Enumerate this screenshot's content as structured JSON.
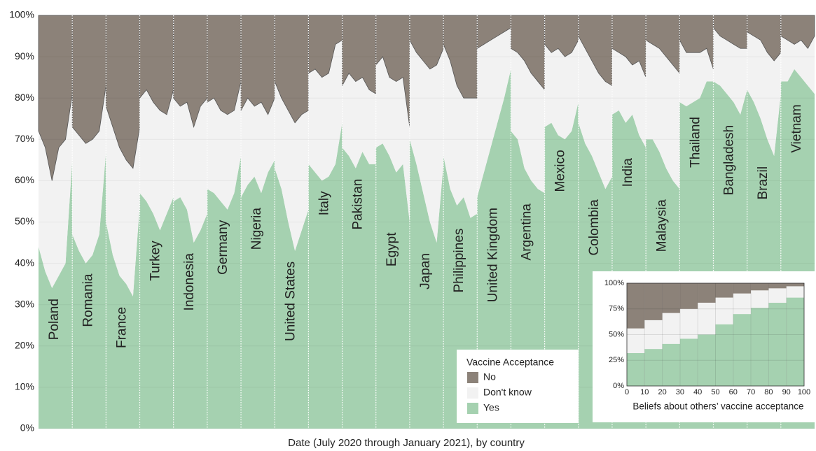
{
  "chart_data": [
    {
      "type": "stacked_area_panels",
      "xlabel": "Date (July 2020 through January 2021), by country",
      "legend_title": "Vaccine Acceptance",
      "ylim": [
        0,
        100
      ],
      "yticks": [
        {
          "value": 0,
          "label": "0%"
        },
        {
          "value": 10,
          "label": "10%"
        },
        {
          "value": 20,
          "label": "20%"
        },
        {
          "value": 30,
          "label": "30%"
        },
        {
          "value": 40,
          "label": "40%"
        },
        {
          "value": 50,
          "label": "50%"
        },
        {
          "value": 60,
          "label": "60%"
        },
        {
          "value": 70,
          "label": "70%"
        },
        {
          "value": 80,
          "label": "80%"
        },
        {
          "value": 90,
          "label": "90%"
        },
        {
          "value": 100,
          "label": "100%"
        }
      ],
      "grid": true,
      "categories": [
        "Poland",
        "Romania",
        "France",
        "Turkey",
        "Indonesia",
        "Germany",
        "Nigeria",
        "United States",
        "Italy",
        "Pakistan",
        "Egypt",
        "Japan",
        "Philippines",
        "United Kingdom",
        "Argentina",
        "Mexico",
        "Colombia",
        "India",
        "Malaysia",
        "Thailand",
        "Bangladesh",
        "Brazil",
        "Vietnam"
      ],
      "series": [
        {
          "name": "No",
          "color": "#8c8279",
          "values": [
            [
              28,
              32,
              40,
              32,
              30,
              19
            ],
            [
              27,
              29,
              31,
              30,
              28,
              17
            ],
            [
              22,
              27,
              32,
              35,
              37,
              27
            ],
            [
              20,
              18,
              21,
              23,
              24,
              18
            ],
            [
              20,
              22,
              21,
              27,
              22,
              20
            ],
            [
              21,
              20,
              23,
              24,
              23,
              16
            ],
            [
              23,
              20,
              22,
              21,
              24,
              20
            ],
            [
              16,
              20,
              23,
              26,
              24,
              23
            ],
            [
              14,
              13,
              15,
              14,
              7,
              6
            ],
            [
              17,
              14,
              16,
              15,
              18,
              19
            ],
            [
              12,
              10,
              15,
              16,
              15,
              27
            ],
            [
              6,
              9,
              11,
              13,
              12,
              8
            ],
            [
              7,
              11,
              17,
              20,
              20,
              20
            ],
            [
              8,
              7,
              6,
              5,
              4,
              3
            ],
            [
              8,
              9,
              11,
              14,
              16,
              18
            ],
            [
              7,
              9,
              8,
              10,
              9,
              6
            ],
            [
              5,
              8,
              11,
              14,
              16,
              17
            ],
            [
              8,
              9,
              10,
              12,
              11,
              15
            ],
            [
              6,
              7,
              8,
              10,
              12,
              14
            ],
            [
              6,
              9,
              9,
              9,
              8,
              13
            ],
            [
              3,
              5,
              6,
              7,
              8,
              8
            ],
            [
              4,
              5,
              6,
              9,
              11,
              9
            ],
            [
              5,
              6,
              7,
              6,
              8,
              5
            ]
          ]
        },
        {
          "name": "Don't know",
          "color": "#f2f2f2",
          "values": [
            [
              28,
              30,
              26,
              31,
              30,
              16
            ],
            [
              26,
              28,
              29,
              28,
              25,
              16
            ],
            [
              28,
              31,
              31,
              30,
              31,
              19
            ],
            [
              23,
              27,
              27,
              29,
              24,
              26
            ],
            [
              25,
              22,
              26,
              28,
              30,
              28
            ],
            [
              21,
              23,
              22,
              23,
              20,
              18
            ],
            [
              21,
              21,
              17,
              22,
              14,
              15
            ],
            [
              21,
              22,
              27,
              31,
              28,
              24
            ],
            [
              22,
              25,
              25,
              25,
              29,
              20
            ],
            [
              15,
              20,
              21,
              18,
              18,
              17
            ],
            [
              20,
              21,
              19,
              22,
              21,
              23
            ],
            [
              24,
              27,
              32,
              37,
              43,
              28
            ],
            [
              27,
              31,
              29,
              24,
              29,
              28
            ],
            [
              36,
              31,
              26,
              21,
              16,
              10
            ],
            [
              20,
              21,
              26,
              26,
              26,
              25
            ],
            [
              20,
              17,
              21,
              20,
              19,
              15
            ],
            [
              21,
              23,
              23,
              24,
              26,
              22
            ],
            [
              16,
              14,
              16,
              12,
              18,
              17
            ],
            [
              24,
              23,
              25,
              27,
              28,
              28
            ],
            [
              15,
              13,
              12,
              11,
              8,
              3
            ],
            [
              13,
              12,
              13,
              14,
              16,
              10
            ],
            [
              14,
              16,
              19,
              21,
              23,
              10
            ],
            [
              11,
              10,
              6,
              9,
              9,
              14
            ]
          ]
        },
        {
          "name": "Yes",
          "color": "#a5d1b0",
          "values": [
            [
              44,
              38,
              34,
              37,
              40,
              65
            ],
            [
              47,
              43,
              40,
              42,
              47,
              67
            ],
            [
              50,
              42,
              37,
              35,
              32,
              54
            ],
            [
              57,
              55,
              52,
              48,
              52,
              56
            ],
            [
              55,
              56,
              53,
              45,
              48,
              52
            ],
            [
              58,
              57,
              55,
              53,
              57,
              66
            ],
            [
              56,
              59,
              61,
              57,
              62,
              65
            ],
            [
              63,
              58,
              50,
              43,
              48,
              53
            ],
            [
              64,
              62,
              60,
              61,
              64,
              74
            ],
            [
              68,
              66,
              63,
              67,
              64,
              64
            ],
            [
              68,
              69,
              66,
              62,
              64,
              50
            ],
            [
              70,
              64,
              57,
              50,
              45,
              64
            ],
            [
              66,
              58,
              54,
              56,
              51,
              52
            ],
            [
              56,
              62,
              68,
              74,
              80,
              87
            ],
            [
              72,
              70,
              63,
              60,
              58,
              57
            ],
            [
              73,
              74,
              71,
              70,
              72,
              79
            ],
            [
              74,
              69,
              66,
              62,
              58,
              61
            ],
            [
              76,
              77,
              74,
              76,
              71,
              68
            ],
            [
              70,
              70,
              67,
              63,
              60,
              58
            ],
            [
              79,
              78,
              79,
              80,
              84,
              84
            ],
            [
              84,
              83,
              81,
              79,
              76,
              82
            ],
            [
              82,
              79,
              75,
              70,
              66,
              81
            ],
            [
              84,
              84,
              87,
              85,
              83,
              81
            ]
          ]
        }
      ]
    },
    {
      "type": "stacked_histogram",
      "xlabel": "Beliefs about others’ vaccine acceptance",
      "bins": [
        0,
        10,
        20,
        30,
        40,
        50,
        60,
        70,
        80,
        90,
        100
      ],
      "xlim": [
        0,
        100
      ],
      "xticks": [
        0,
        10,
        20,
        30,
        40,
        50,
        60,
        70,
        80,
        90,
        100
      ],
      "ylim": [
        0,
        100
      ],
      "yticks": [
        {
          "value": 0,
          "label": "0%"
        },
        {
          "value": 25,
          "label": "25%"
        },
        {
          "value": 50,
          "label": "50%"
        },
        {
          "value": 75,
          "label": "75%"
        },
        {
          "value": 100,
          "label": "100%"
        }
      ],
      "grid": true,
      "series": [
        {
          "name": "No",
          "color": "#8c8279",
          "values": [
            44,
            36,
            29,
            25,
            19,
            14,
            10,
            7,
            5,
            3
          ]
        },
        {
          "name": "Don't know",
          "color": "#f2f2f2",
          "values": [
            24,
            28,
            30,
            29,
            31,
            26,
            20,
            17,
            14,
            11
          ]
        },
        {
          "name": "Yes",
          "color": "#a5d1b0",
          "values": [
            32,
            36,
            41,
            46,
            50,
            60,
            70,
            76,
            81,
            86
          ]
        }
      ]
    }
  ]
}
